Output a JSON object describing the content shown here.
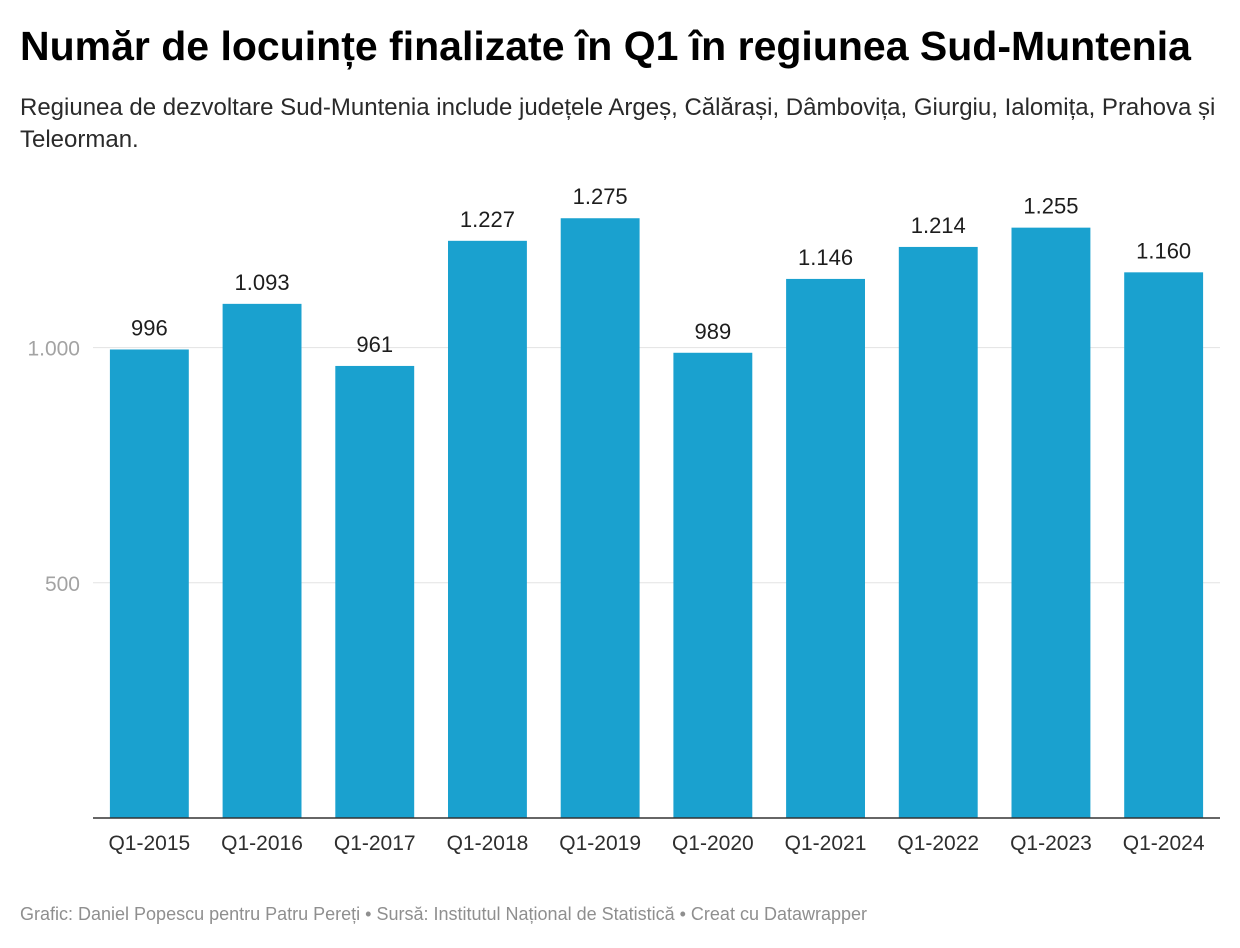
{
  "header": {
    "title": "Număr de locuințe finalizate în Q1 în regiunea Sud-Muntenia",
    "subtitle": "Regiunea de dezvoltare Sud-Muntenia include județele Argeș, Călărași, Dâmbovița, Giurgiu, Ialomița, Prahova și Teleorman."
  },
  "chart_data": {
    "type": "bar",
    "title": "Număr de locuințe finalizate în Q1 în regiunea Sud-Muntenia",
    "subtitle": "Regiunea de dezvoltare Sud-Muntenia include județele Argeș, Călărași, Dâmbovița, Giurgiu, Ialomița, Prahova și Teleorman.",
    "xlabel": "",
    "ylabel": "",
    "categories": [
      "Q1-2015",
      "Q1-2016",
      "Q1-2017",
      "Q1-2018",
      "Q1-2019",
      "Q1-2020",
      "Q1-2021",
      "Q1-2022",
      "Q1-2023",
      "Q1-2024"
    ],
    "values": [
      996,
      1093,
      961,
      1227,
      1275,
      989,
      1146,
      1214,
      1255,
      1160
    ],
    "value_labels": [
      "996",
      "1.093",
      "961",
      "1.227",
      "1.275",
      "989",
      "1.146",
      "1.214",
      "1.255",
      "1.160"
    ],
    "ylim": [
      0,
      1300
    ],
    "y_ticks": [
      500,
      1000
    ],
    "y_tick_labels": [
      "500",
      "1.000"
    ],
    "grid": true,
    "legend": "none",
    "colors": {
      "bar": "#1aa1cf",
      "grid": "#e3e3e3",
      "baseline": "#333333"
    }
  },
  "footer": {
    "notes": "Grafic: Daniel Popescu pentru Patru Pereți • Sursă: Institutul Național de Statistică • Creat cu Datawrapper"
  }
}
